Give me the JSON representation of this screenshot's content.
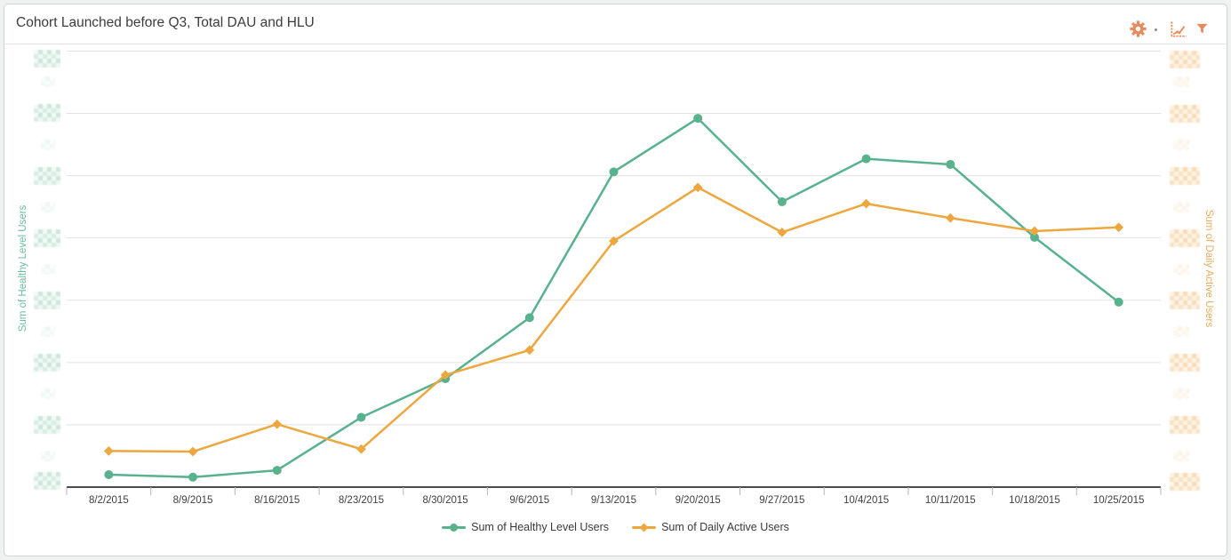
{
  "window": {
    "background": "#f0f1f1",
    "card_border": "#d2d2d2"
  },
  "header": {
    "title": "Cohort Launched before Q3, Total DAU and HLU",
    "toolbar": {
      "icon_color": "#e98a5e",
      "icons": [
        "settings-gear",
        "chart-type-line",
        "filter-funnel"
      ]
    }
  },
  "chart_data": {
    "type": "line",
    "title": "Cohort Launched before Q3, Total DAU and HLU",
    "categories": [
      "8/2/2015",
      "8/9/2015",
      "8/16/2015",
      "8/23/2015",
      "8/30/2015",
      "9/6/2015",
      "9/13/2015",
      "9/20/2015",
      "9/27/2015",
      "10/4/2015",
      "10/11/2015",
      "10/18/2015",
      "10/25/2015"
    ],
    "series": [
      {
        "name": "Sum of Healthy Level Users",
        "axis": "left",
        "color": "#58b28d",
        "marker": "circle",
        "values": [
          0.2,
          0.16,
          0.27,
          1.12,
          1.74,
          2.72,
          5.06,
          5.92,
          4.58,
          5.27,
          5.18,
          4.01,
          2.97
        ]
      },
      {
        "name": "Sum of Daily Active Users",
        "axis": "right",
        "color": "#eda73f",
        "marker": "diamond",
        "values": [
          0.58,
          0.57,
          1.01,
          0.61,
          1.8,
          2.2,
          3.95,
          4.81,
          4.09,
          4.55,
          4.32,
          4.11,
          4.17
        ]
      }
    ],
    "value_scale": "gridline units: 0 = x-axis baseline, 7 = top gridline (numeric y-axis tick labels are pixelated/redacted in the screenshot)",
    "ylim": [
      0,
      7
    ],
    "grid": "horizontal",
    "legend_position": "bottom-center",
    "y_axes": {
      "left": {
        "label": "Sum of Healthy Level Users",
        "color": "#6bbda1",
        "tick_count": 8,
        "tick_labels": "redacted"
      },
      "right": {
        "label": "Sum of Daily Active Users",
        "color": "#e9ac5d",
        "tick_count": 8,
        "tick_labels": "redacted"
      }
    }
  }
}
